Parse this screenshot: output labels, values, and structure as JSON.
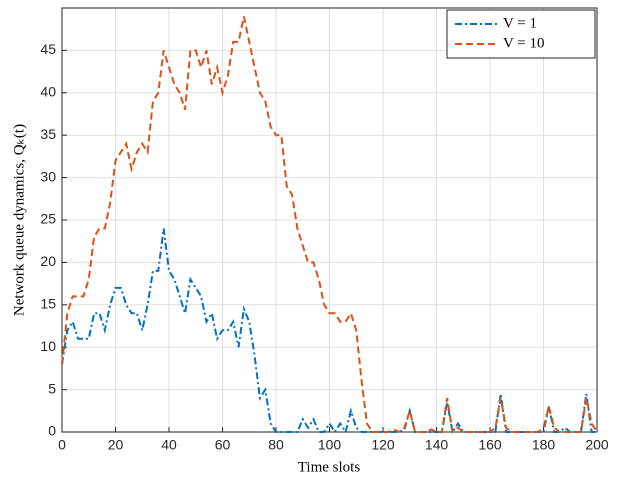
{
  "chart_data": {
    "type": "line",
    "xlabel": "Time slots",
    "ylabel": "Network queue dynamics, Qₖ(t)",
    "x": [
      0,
      2,
      4,
      6,
      8,
      10,
      12,
      14,
      16,
      18,
      20,
      22,
      24,
      26,
      28,
      30,
      32,
      34,
      36,
      38,
      40,
      42,
      44,
      46,
      48,
      50,
      52,
      54,
      56,
      58,
      60,
      62,
      64,
      66,
      68,
      70,
      72,
      74,
      76,
      78,
      80,
      82,
      84,
      86,
      88,
      90,
      92,
      94,
      96,
      98,
      100,
      102,
      104,
      106,
      108,
      110,
      112,
      114,
      116,
      118,
      120,
      122,
      124,
      126,
      128,
      130,
      132,
      134,
      136,
      138,
      140,
      142,
      144,
      146,
      148,
      150,
      152,
      154,
      156,
      158,
      160,
      162,
      164,
      166,
      168,
      170,
      172,
      174,
      176,
      178,
      180,
      182,
      184,
      186,
      188,
      190,
      192,
      194,
      196,
      198,
      200
    ],
    "series": [
      {
        "name": "V = 1",
        "color": "#0072bd",
        "dash": "dashdot",
        "values": [
          8,
          12,
          13,
          11,
          11,
          11,
          14,
          14,
          12,
          15,
          17,
          17,
          15,
          14,
          14,
          12,
          15,
          19,
          19,
          24,
          19,
          18,
          16,
          14,
          18,
          17,
          16,
          13,
          14,
          11,
          12,
          12,
          13,
          10,
          14.5,
          13,
          9,
          4,
          5,
          1,
          0,
          0,
          0,
          0,
          0,
          1.5,
          0.5,
          1.5,
          0,
          0,
          1,
          0,
          1,
          0,
          2.5,
          0.5,
          0,
          0,
          0,
          0,
          0,
          0,
          0,
          0,
          0.3,
          2.5,
          0,
          0,
          0,
          0,
          0,
          0,
          3.5,
          0,
          1,
          0,
          0,
          0,
          0,
          0,
          0,
          0,
          4.5,
          0,
          0,
          0,
          0,
          0,
          0,
          0,
          0,
          3,
          0,
          0,
          0.5,
          0,
          0,
          0,
          4.5,
          0,
          0
        ]
      },
      {
        "name": "V = 10",
        "color": "#d95319",
        "dash": "dashed",
        "values": [
          8,
          14,
          16,
          16,
          16,
          18,
          23,
          24,
          24,
          27,
          32,
          33,
          34,
          31,
          33,
          34,
          33,
          39,
          40,
          45,
          43,
          41,
          40,
          38,
          45,
          45,
          43,
          45,
          41,
          43,
          40,
          42,
          46,
          46,
          49,
          46,
          43,
          40,
          39,
          36,
          35,
          35,
          29,
          28,
          24,
          22,
          20,
          20,
          18,
          15,
          14,
          14,
          13,
          13,
          14,
          12,
          6,
          1,
          0,
          0,
          0,
          0,
          0.3,
          0,
          0.5,
          2.5,
          0,
          0,
          0,
          0.3,
          0,
          0,
          4,
          0,
          0.5,
          0,
          0,
          0,
          0,
          0,
          0,
          0.5,
          4,
          0.5,
          0,
          0,
          0,
          0,
          0,
          0,
          0.5,
          3,
          0.5,
          0,
          0,
          0,
          0,
          0,
          4,
          1,
          0
        ]
      }
    ],
    "xlim": [
      0,
      200
    ],
    "xticks": [
      0,
      20,
      40,
      60,
      80,
      100,
      120,
      140,
      160,
      180,
      200
    ],
    "ylim": [
      0,
      50
    ],
    "yticks": [
      0,
      5,
      10,
      15,
      20,
      25,
      30,
      35,
      40,
      45
    ],
    "grid": true,
    "legend": "upper right"
  }
}
